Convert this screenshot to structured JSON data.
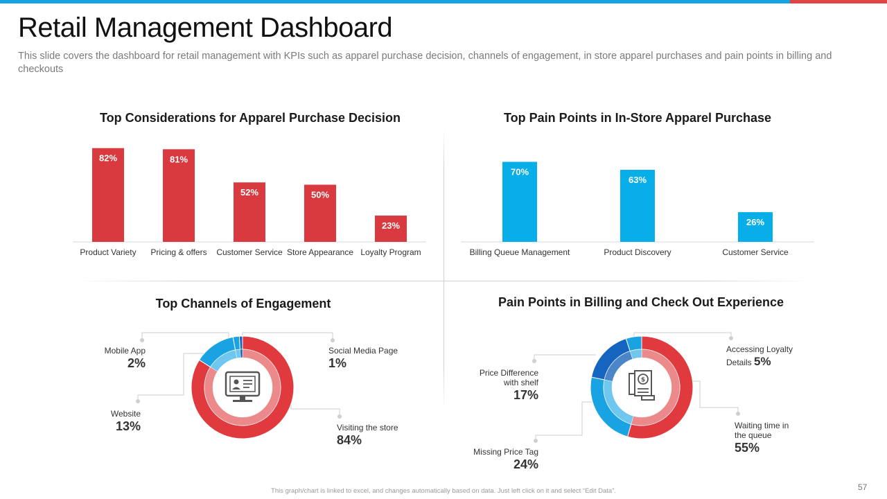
{
  "slide": {
    "title": "Retail Management Dashboard",
    "subtitle": "This slide covers the dashboard for retail management with KPIs such as apparel purchase decision, channels of engagement, in store apparel purchases and pain points in billing and checkouts",
    "footer": "This graph/chart is linked to excel, and changes automatically based on data. Just left click on it and select “Edit Data”.",
    "page_number": "57"
  },
  "colors": {
    "accent_blue": "#14a3e0",
    "accent_red": "#e04545",
    "bar_red": "#d93a3f",
    "bar_blue": "#08aee8",
    "ring_red": "#e0393e",
    "ring_inner_red": "#ec8a8b",
    "ring_blue": "#1aa3e3",
    "ring_dark_blue": "#1565c0",
    "ring_light_blue": "#6fc7f0"
  },
  "chart_data": [
    {
      "type": "bar",
      "id": "considerations",
      "title": "Top Considerations for Apparel Purchase Decision",
      "categories": [
        "Product Variety",
        "Pricing & offers",
        "Customer Service",
        "Store Appearance",
        "Loyalty Program"
      ],
      "values": [
        82,
        81,
        52,
        50,
        23
      ],
      "value_labels": [
        "82%",
        "81%",
        "52%",
        "50%",
        "23%"
      ],
      "ylim": [
        0,
        100
      ],
      "color": "#d93a3f"
    },
    {
      "type": "bar",
      "id": "pain_points",
      "title": "Top Pain Points in In-Store Apparel Purchase",
      "categories": [
        "Billing Queue Management",
        "Product Discovery",
        "Customer Service"
      ],
      "values": [
        70,
        63,
        26
      ],
      "value_labels": [
        "70%",
        "63%",
        "26%"
      ],
      "ylim": [
        0,
        100
      ],
      "color": "#08aee8"
    },
    {
      "type": "pie",
      "id": "channels",
      "title": "Top Channels of Engagement",
      "icon": "monitor-profile-icon",
      "slices": [
        {
          "label": "Visiting the store",
          "value": 84,
          "display": "84%"
        },
        {
          "label": "Website",
          "value": 13,
          "display": "13%"
        },
        {
          "label": "Mobile App",
          "value": 2,
          "display": "2%"
        },
        {
          "label": "Social Media Page",
          "value": 1,
          "display": "1%"
        }
      ]
    },
    {
      "type": "pie",
      "id": "billing",
      "title": "Pain Points in Billing and Check Out Experience",
      "icon": "receipt-dollar-icon",
      "slices": [
        {
          "label": "Waiting time in the queue",
          "value": 55,
          "display": "55%"
        },
        {
          "label": "Missing Price Tag",
          "value": 24,
          "display": "24%"
        },
        {
          "label": "Price Difference with shelf",
          "value": 17,
          "display": "17%"
        },
        {
          "label": "Accessing Loyalty Details",
          "value": 5,
          "display": "5%"
        }
      ]
    }
  ],
  "channels_annotations": {
    "mobile_app": {
      "label": "Mobile App",
      "pct": "2%"
    },
    "website": {
      "label": "Website",
      "pct": "13%"
    },
    "social": {
      "label": "Social Media Page",
      "pct": "1%"
    },
    "store": {
      "label": "Visiting the store",
      "pct": "84%"
    }
  },
  "billing_annotations": {
    "price_diff": {
      "label_line1": "Price Difference",
      "label_line2": "with shelf",
      "pct": "17%"
    },
    "missing_tag": {
      "label": "Missing Price Tag",
      "pct": "24%"
    },
    "loyalty": {
      "label_line1": "Accessing Loyalty",
      "label_line2": "Details",
      "pct": "5%"
    },
    "waiting": {
      "label_line1": "Waiting time in",
      "label_line2": "the queue",
      "pct": "55%"
    }
  }
}
